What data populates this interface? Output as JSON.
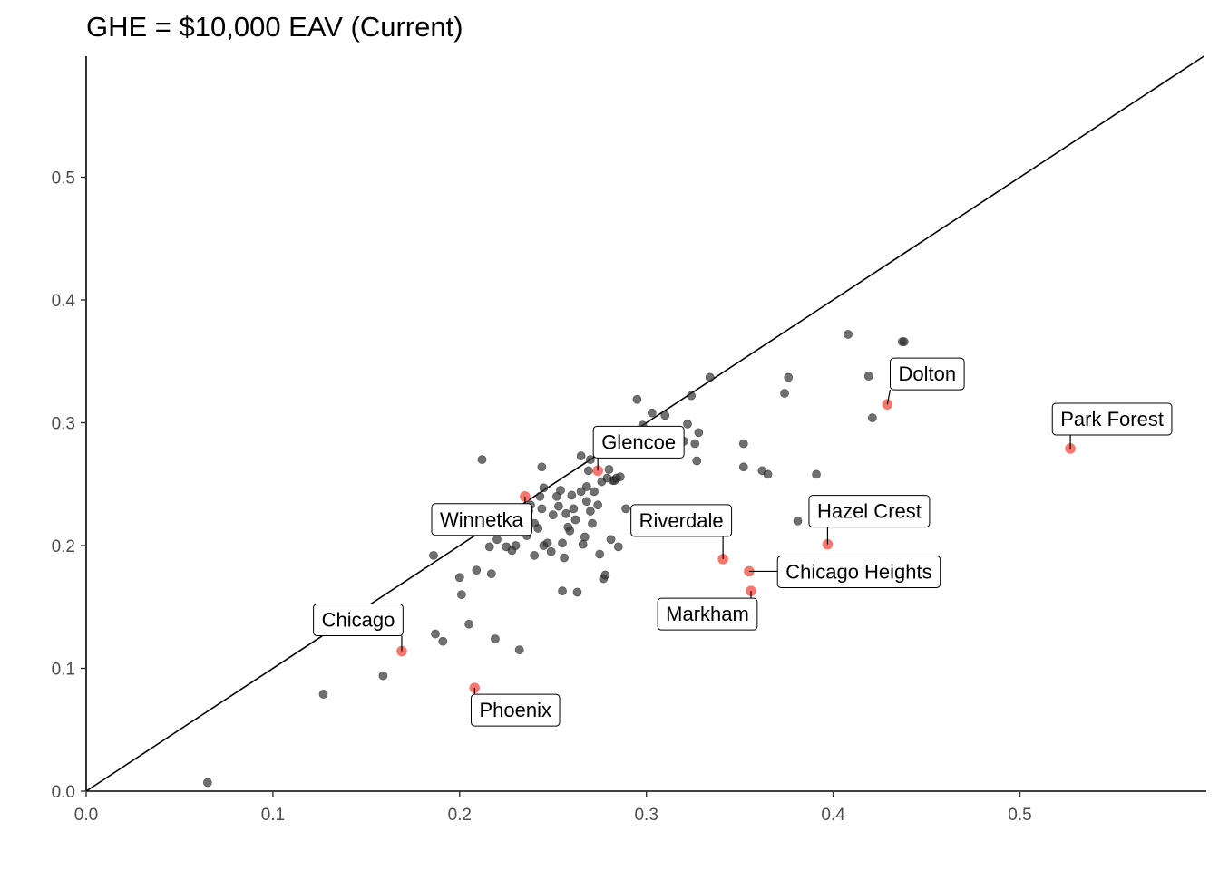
{
  "chart_data": {
    "type": "scatter",
    "title": "GHE = $10,000 EAV (Current)",
    "xlabel": "",
    "ylabel": "",
    "xlim": [
      0,
      0.6
    ],
    "ylim": [
      0,
      0.6
    ],
    "x_ticks": [
      "0.0",
      "0.1",
      "0.2",
      "0.3",
      "0.4",
      "0.5"
    ],
    "y_ticks": [
      "0.0",
      "0.1",
      "0.2",
      "0.3",
      "0.4",
      "0.5"
    ],
    "reference_line": "y = x",
    "grid": false,
    "colors": {
      "points": "#333333",
      "highlight": "#F8766D",
      "line": "#000000"
    },
    "points": [
      {
        "x": 0.065,
        "y": 0.007
      },
      {
        "x": 0.127,
        "y": 0.079
      },
      {
        "x": 0.159,
        "y": 0.094
      },
      {
        "x": 0.187,
        "y": 0.128
      },
      {
        "x": 0.191,
        "y": 0.122
      },
      {
        "x": 0.186,
        "y": 0.192
      },
      {
        "x": 0.2,
        "y": 0.174
      },
      {
        "x": 0.201,
        "y": 0.16
      },
      {
        "x": 0.205,
        "y": 0.136
      },
      {
        "x": 0.209,
        "y": 0.18
      },
      {
        "x": 0.212,
        "y": 0.27
      },
      {
        "x": 0.216,
        "y": 0.199
      },
      {
        "x": 0.217,
        "y": 0.177
      },
      {
        "x": 0.219,
        "y": 0.124
      },
      {
        "x": 0.22,
        "y": 0.205
      },
      {
        "x": 0.225,
        "y": 0.199
      },
      {
        "x": 0.228,
        "y": 0.196
      },
      {
        "x": 0.23,
        "y": 0.2
      },
      {
        "x": 0.232,
        "y": 0.115
      },
      {
        "x": 0.234,
        "y": 0.211
      },
      {
        "x": 0.236,
        "y": 0.208
      },
      {
        "x": 0.237,
        "y": 0.228
      },
      {
        "x": 0.238,
        "y": 0.233
      },
      {
        "x": 0.24,
        "y": 0.192
      },
      {
        "x": 0.24,
        "y": 0.218
      },
      {
        "x": 0.242,
        "y": 0.214
      },
      {
        "x": 0.243,
        "y": 0.24
      },
      {
        "x": 0.244,
        "y": 0.23
      },
      {
        "x": 0.244,
        "y": 0.264
      },
      {
        "x": 0.245,
        "y": 0.247
      },
      {
        "x": 0.245,
        "y": 0.2
      },
      {
        "x": 0.247,
        "y": 0.202
      },
      {
        "x": 0.249,
        "y": 0.195
      },
      {
        "x": 0.25,
        "y": 0.225
      },
      {
        "x": 0.252,
        "y": 0.24
      },
      {
        "x": 0.253,
        "y": 0.232
      },
      {
        "x": 0.254,
        "y": 0.245
      },
      {
        "x": 0.255,
        "y": 0.202
      },
      {
        "x": 0.255,
        "y": 0.163
      },
      {
        "x": 0.256,
        "y": 0.19
      },
      {
        "x": 0.257,
        "y": 0.226
      },
      {
        "x": 0.258,
        "y": 0.215
      },
      {
        "x": 0.259,
        "y": 0.212
      },
      {
        "x": 0.26,
        "y": 0.241
      },
      {
        "x": 0.261,
        "y": 0.23
      },
      {
        "x": 0.262,
        "y": 0.221
      },
      {
        "x": 0.263,
        "y": 0.162
      },
      {
        "x": 0.265,
        "y": 0.244
      },
      {
        "x": 0.265,
        "y": 0.273
      },
      {
        "x": 0.266,
        "y": 0.201
      },
      {
        "x": 0.267,
        "y": 0.207
      },
      {
        "x": 0.268,
        "y": 0.248
      },
      {
        "x": 0.268,
        "y": 0.236
      },
      {
        "x": 0.269,
        "y": 0.261
      },
      {
        "x": 0.27,
        "y": 0.27
      },
      {
        "x": 0.27,
        "y": 0.228
      },
      {
        "x": 0.271,
        "y": 0.218
      },
      {
        "x": 0.272,
        "y": 0.244
      },
      {
        "x": 0.274,
        "y": 0.233
      },
      {
        "x": 0.275,
        "y": 0.193
      },
      {
        "x": 0.276,
        "y": 0.252
      },
      {
        "x": 0.277,
        "y": 0.173
      },
      {
        "x": 0.278,
        "y": 0.176
      },
      {
        "x": 0.279,
        "y": 0.255
      },
      {
        "x": 0.28,
        "y": 0.262
      },
      {
        "x": 0.281,
        "y": 0.205
      },
      {
        "x": 0.282,
        "y": 0.253
      },
      {
        "x": 0.283,
        "y": 0.253
      },
      {
        "x": 0.284,
        "y": 0.255
      },
      {
        "x": 0.285,
        "y": 0.199
      },
      {
        "x": 0.286,
        "y": 0.256
      },
      {
        "x": 0.288,
        "y": 0.28
      },
      {
        "x": 0.289,
        "y": 0.23
      },
      {
        "x": 0.295,
        "y": 0.319
      },
      {
        "x": 0.298,
        "y": 0.298
      },
      {
        "x": 0.303,
        "y": 0.308
      },
      {
        "x": 0.31,
        "y": 0.306
      },
      {
        "x": 0.32,
        "y": 0.285
      },
      {
        "x": 0.322,
        "y": 0.299
      },
      {
        "x": 0.324,
        "y": 0.322
      },
      {
        "x": 0.326,
        "y": 0.283
      },
      {
        "x": 0.327,
        "y": 0.269
      },
      {
        "x": 0.328,
        "y": 0.292
      },
      {
        "x": 0.334,
        "y": 0.337
      },
      {
        "x": 0.341,
        "y": 0.189
      },
      {
        "x": 0.352,
        "y": 0.283
      },
      {
        "x": 0.352,
        "y": 0.264
      },
      {
        "x": 0.362,
        "y": 0.261
      },
      {
        "x": 0.365,
        "y": 0.258
      },
      {
        "x": 0.374,
        "y": 0.324
      },
      {
        "x": 0.376,
        "y": 0.337
      },
      {
        "x": 0.381,
        "y": 0.22
      },
      {
        "x": 0.391,
        "y": 0.258
      },
      {
        "x": 0.408,
        "y": 0.372
      },
      {
        "x": 0.419,
        "y": 0.338
      },
      {
        "x": 0.421,
        "y": 0.304
      },
      {
        "x": 0.437,
        "y": 0.366
      },
      {
        "x": 0.438,
        "y": 0.366
      }
    ],
    "highlighted": [
      {
        "name": "Dolton",
        "x": 0.429,
        "y": 0.315
      },
      {
        "name": "Park Forest",
        "x": 0.527,
        "y": 0.279
      },
      {
        "name": "Glencoe",
        "x": 0.274,
        "y": 0.261
      },
      {
        "name": "Winnetka",
        "x": 0.235,
        "y": 0.24
      },
      {
        "name": "Riverdale",
        "x": 0.341,
        "y": 0.189
      },
      {
        "name": "Hazel Crest",
        "x": 0.397,
        "y": 0.201
      },
      {
        "name": "Chicago Heights",
        "x": 0.355,
        "y": 0.179
      },
      {
        "name": "Markham",
        "x": 0.356,
        "y": 0.163
      },
      {
        "name": "Chicago",
        "x": 0.169,
        "y": 0.114
      },
      {
        "name": "Phoenix",
        "x": 0.208,
        "y": 0.084
      }
    ]
  }
}
